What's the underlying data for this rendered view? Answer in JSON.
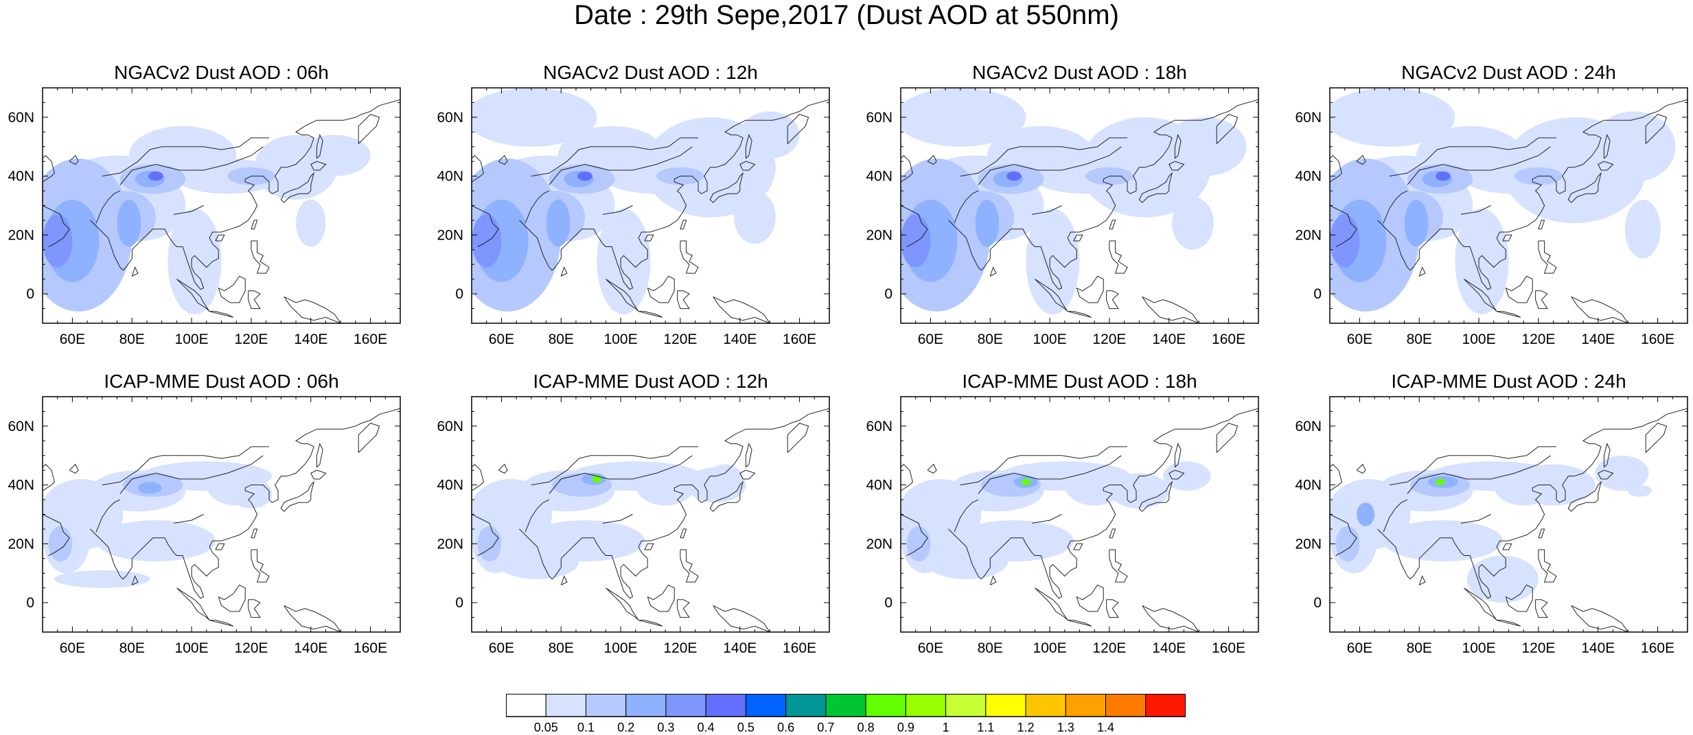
{
  "figure_title": "Date : 29th Sepe,2017 (Dust AOD at 550nm)",
  "colors": {
    "land_outline": "#222222",
    "frame": "#000000"
  },
  "map_extent": {
    "lon": [
      50,
      170
    ],
    "lat": [
      -10,
      70
    ]
  },
  "lat_ticks": [
    "60N",
    "40N",
    "20N",
    "0"
  ],
  "lon_ticks": [
    "60E",
    "80E",
    "100E",
    "120E",
    "140E",
    "160E"
  ],
  "panels": [
    {
      "title": "NGACv2 Dust AOD : 06h",
      "model": "NGACv2",
      "lead": "06h"
    },
    {
      "title": "NGACv2 Dust AOD : 12h",
      "model": "NGACv2",
      "lead": "12h"
    },
    {
      "title": "NGACv2 Dust AOD : 18h",
      "model": "NGACv2",
      "lead": "18h"
    },
    {
      "title": "NGACv2 Dust AOD : 24h",
      "model": "NGACv2",
      "lead": "24h"
    },
    {
      "title": "ICAP-MME Dust AOD : 06h",
      "model": "ICAP-MME",
      "lead": "06h"
    },
    {
      "title": "ICAP-MME Dust AOD : 12h",
      "model": "ICAP-MME",
      "lead": "12h"
    },
    {
      "title": "ICAP-MME Dust AOD : 18h",
      "model": "ICAP-MME",
      "lead": "18h"
    },
    {
      "title": "ICAP-MME Dust AOD : 24h",
      "model": "ICAP-MME",
      "lead": "24h"
    }
  ],
  "colorbar": {
    "levels": [
      "0.05",
      "0.1",
      "0.2",
      "0.3",
      "0.4",
      "0.5",
      "0.6",
      "0.7",
      "0.8",
      "0.9",
      "1",
      "1.1",
      "1.2",
      "1.3",
      "1.4"
    ],
    "colors": [
      "#ffffff",
      "#d6e2ff",
      "#b5c9ff",
      "#8eb2ff",
      "#7f96ff",
      "#6370ff",
      "#0063ff",
      "#009696",
      "#00c633",
      "#63ff00",
      "#96ff00",
      "#c6ff33",
      "#ffff00",
      "#ffc600",
      "#ffa000",
      "#ff7c00",
      "#ff1900"
    ]
  }
}
